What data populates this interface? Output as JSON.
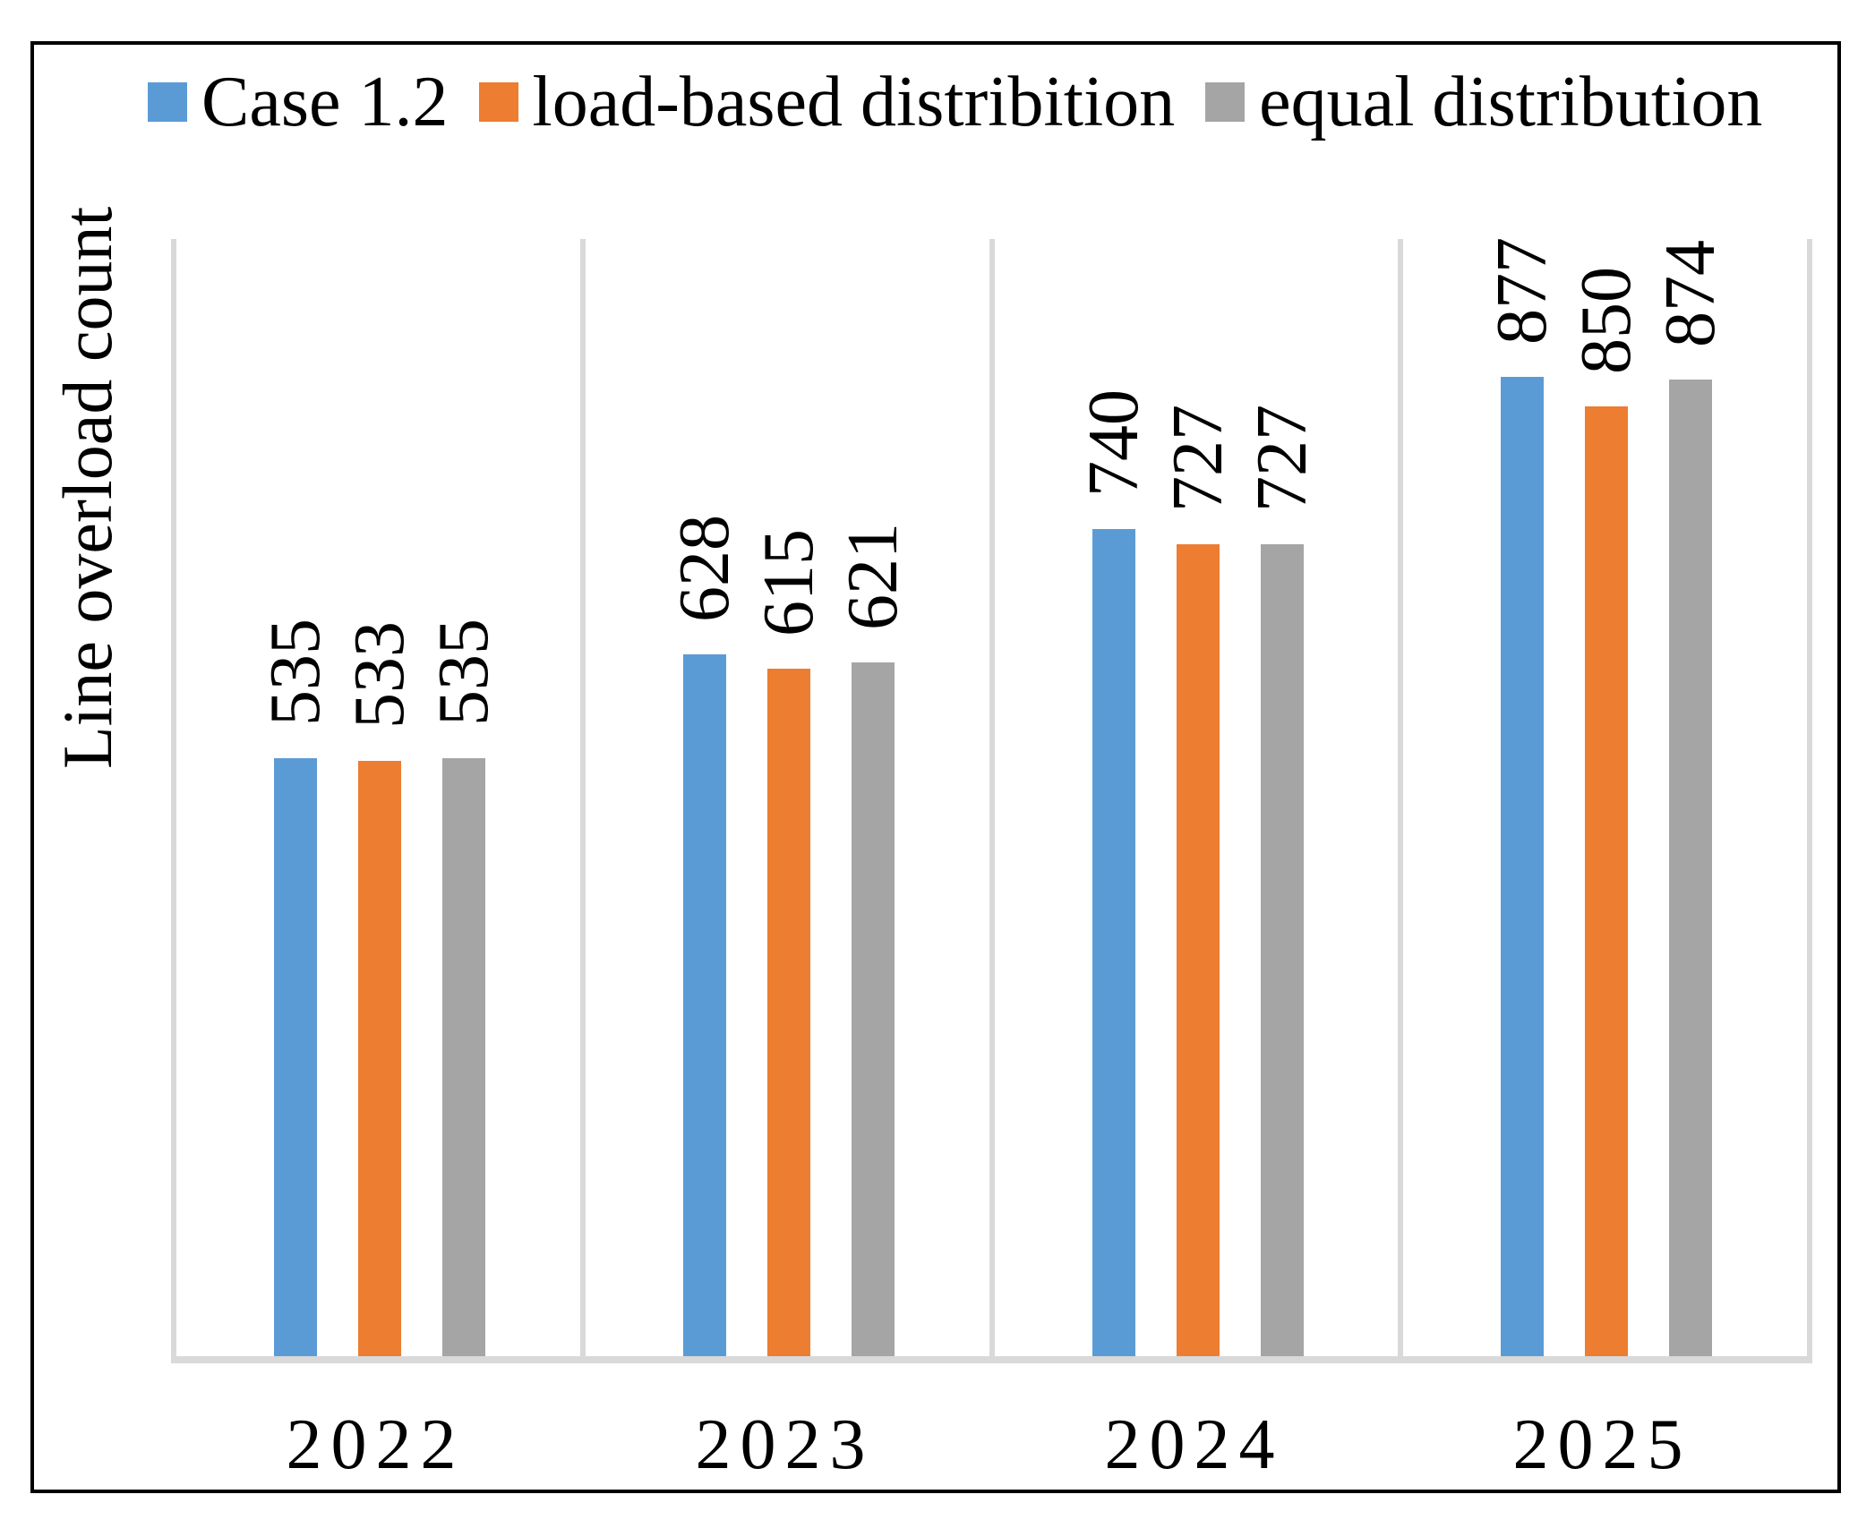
{
  "chart_data": {
    "type": "bar",
    "title": "",
    "xlabel": "",
    "ylabel": "Line overload count",
    "categories": [
      "2022",
      "2023",
      "2024",
      "2025"
    ],
    "series": [
      {
        "name": "Case 1.2",
        "color": "#5B9BD5",
        "values": [
          535,
          628,
          740,
          877
        ]
      },
      {
        "name": "load-based distribition",
        "color": "#ED7D31",
        "values": [
          533,
          615,
          727,
          850
        ]
      },
      {
        "name": "equal distribution",
        "color": "#A5A5A5",
        "values": [
          535,
          621,
          727,
          874
        ]
      }
    ],
    "ylim": [
      0,
      1000
    ],
    "grid": "vertical category separator lines",
    "grid_color": "#D9D9D9",
    "axis_line_color": "#D9D9D9",
    "text_color": "#000000",
    "frame_color": "#000000",
    "legend_position": "top",
    "value_label_rotation_deg": 90,
    "y_axis_ticks_visible": false
  }
}
